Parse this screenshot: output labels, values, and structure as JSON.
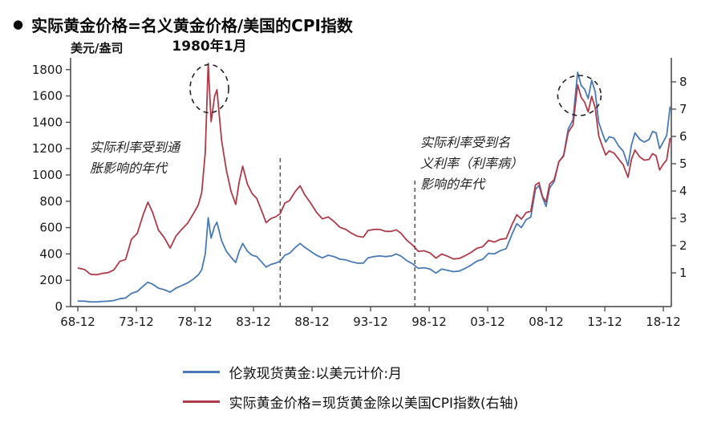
{
  "title": {
    "bullet": "●",
    "text": "实际黄金价格=名义黄金价格/美国的CPI指数"
  },
  "chart_data": {
    "type": "line",
    "unit_label": "美元/盎司",
    "x_range": [
      1968.3,
      2019.6
    ],
    "x_tick_labels": [
      "68-12",
      "73-12",
      "78-12",
      "83-12",
      "88-12",
      "93-12",
      "98-12",
      "03-12",
      "08-12",
      "13-12",
      "18-12"
    ],
    "x_tick_years": [
      1968.92,
      1973.92,
      1978.92,
      1983.92,
      1988.92,
      1993.92,
      1998.92,
      2003.92,
      2008.92,
      2013.92,
      2018.92
    ],
    "left_axis": {
      "ticks": [
        0,
        200,
        400,
        600,
        800,
        1000,
        1200,
        1400,
        1600,
        1800
      ],
      "range": [
        0,
        1890
      ]
    },
    "right_axis": {
      "ticks": [
        1,
        2,
        3,
        4,
        5,
        6,
        7,
        8
      ],
      "range": [
        -0.235,
        8.882
      ]
    },
    "x": [
      1968.9,
      1969.5,
      1970.0,
      1970.5,
      1971.0,
      1971.5,
      1972.0,
      1972.5,
      1973.0,
      1973.5,
      1974.0,
      1974.5,
      1974.9,
      1975.3,
      1975.8,
      1976.3,
      1976.8,
      1977.3,
      1977.8,
      1978.3,
      1978.8,
      1979.2,
      1979.5,
      1979.8,
      1980.05,
      1980.3,
      1980.6,
      1980.8,
      1981.2,
      1981.6,
      1982.0,
      1982.4,
      1982.7,
      1983.0,
      1983.4,
      1983.8,
      1984.2,
      1984.6,
      1985.0,
      1985.4,
      1985.8,
      1986.2,
      1986.6,
      1987.0,
      1987.5,
      1987.9,
      1988.3,
      1988.8,
      1989.3,
      1989.8,
      1990.3,
      1990.8,
      1991.3,
      1991.8,
      1992.3,
      1992.8,
      1993.3,
      1993.7,
      1994.2,
      1994.7,
      1995.2,
      1995.7,
      1996.1,
      1996.5,
      1997.0,
      1997.5,
      1998.0,
      1998.5,
      1999.0,
      1999.5,
      2000.0,
      2000.5,
      2001.0,
      2001.5,
      2002.0,
      2002.5,
      2003.0,
      2003.5,
      2004.0,
      2004.5,
      2005.0,
      2005.5,
      2006.0,
      2006.4,
      2006.8,
      2007.2,
      2007.6,
      2008.0,
      2008.3,
      2008.6,
      2008.9,
      2009.2,
      2009.6,
      2010.0,
      2010.4,
      2010.8,
      2011.2,
      2011.6,
      2011.9,
      2012.2,
      2012.5,
      2012.8,
      2013.1,
      2013.4,
      2013.7,
      2014.0,
      2014.3,
      2014.7,
      2015.1,
      2015.5,
      2015.9,
      2016.2,
      2016.5,
      2016.9,
      2017.3,
      2017.7,
      2018.0,
      2018.3,
      2018.6,
      2018.9,
      2019.2,
      2019.5
    ],
    "series": [
      {
        "name": "伦敦现货黄金:以美元计价:月",
        "axis": "left",
        "color": "#4a7ab5",
        "values": [
          42,
          41,
          36,
          36,
          39,
          41,
          46,
          60,
          65,
          100,
          115,
          155,
          185,
          170,
          140,
          128,
          110,
          140,
          160,
          180,
          210,
          240,
          280,
          400,
          675,
          520,
          610,
          640,
          500,
          420,
          375,
          335,
          420,
          480,
          420,
          390,
          380,
          340,
          300,
          320,
          330,
          345,
          390,
          405,
          450,
          480,
          450,
          420,
          390,
          370,
          390,
          380,
          360,
          355,
          340,
          330,
          330,
          370,
          380,
          385,
          380,
          385,
          400,
          385,
          350,
          325,
          290,
          295,
          285,
          255,
          285,
          275,
          265,
          270,
          290,
          315,
          345,
          360,
          405,
          400,
          425,
          440,
          550,
          630,
          600,
          660,
          680,
          890,
          920,
          830,
          760,
          900,
          950,
          1100,
          1150,
          1350,
          1420,
          1780,
          1680,
          1650,
          1580,
          1720,
          1630,
          1400,
          1320,
          1250,
          1290,
          1280,
          1220,
          1180,
          1070,
          1230,
          1320,
          1270,
          1250,
          1270,
          1330,
          1320,
          1200,
          1250,
          1300,
          1520
        ]
      },
      {
        "name": "实际黄金价格=现货黄金除以美国CPI指数(右轴)",
        "axis": "right",
        "color": "#ae3b49",
        "values": [
          1.18,
          1.12,
          0.95,
          0.93,
          0.98,
          1.01,
          1.11,
          1.42,
          1.49,
          2.23,
          2.45,
          3.13,
          3.59,
          3.22,
          2.57,
          2.29,
          1.91,
          2.35,
          2.6,
          2.82,
          3.18,
          3.48,
          3.94,
          5.41,
          8.68,
          6.54,
          7.48,
          7.71,
          5.85,
          4.77,
          3.99,
          3.51,
          4.33,
          4.91,
          4.25,
          3.91,
          3.73,
          3.29,
          2.84,
          2.99,
          3.05,
          3.17,
          3.56,
          3.65,
          3.99,
          4.19,
          3.86,
          3.56,
          3.22,
          2.98,
          3.05,
          2.88,
          2.67,
          2.59,
          2.45,
          2.34,
          2.31,
          2.55,
          2.59,
          2.59,
          2.52,
          2.52,
          2.58,
          2.46,
          2.2,
          2.02,
          1.79,
          1.81,
          1.73,
          1.54,
          1.69,
          1.61,
          1.51,
          1.53,
          1.63,
          1.75,
          1.9,
          1.96,
          2.19,
          2.13,
          2.23,
          2.26,
          2.77,
          3.13,
          2.97,
          3.21,
          3.26,
          4.22,
          4.31,
          3.79,
          3.6,
          4.25,
          4.42,
          5.08,
          5.28,
          6.16,
          6.42,
          7.89,
          7.43,
          7.25,
          6.9,
          7.47,
          7.05,
          6.02,
          5.65,
          5.32,
          5.47,
          5.39,
          5.17,
          4.96,
          4.5,
          5.17,
          5.5,
          5.25,
          5.13,
          5.16,
          5.37,
          5.29,
          4.77,
          4.98,
          5.14,
          5.94
        ]
      }
    ],
    "annotations": {
      "peak_label": "1980年1月",
      "peak_year": 1980.15,
      "left_note_lines": [
        "实际利率受到通",
        "胀影响的年代"
      ],
      "right_note_lines": [
        "实际利率受到名",
        "义利率（利率病）",
        "影响的年代"
      ],
      "vlines": [
        1986.2,
        1997.7
      ],
      "circles": [
        {
          "x": 1980.15,
          "y": 7.75,
          "rx": 24,
          "ry": 30
        },
        {
          "x": 2011.75,
          "y": 7.5,
          "rx": 27,
          "ry": 25
        }
      ]
    },
    "legend": [
      {
        "label": "伦敦现货黄金:以美元计价:月",
        "color": "#4a7ab5"
      },
      {
        "label": "实际黄金价格=现货黄金除以美国CPI指数(右轴)",
        "color": "#ae3b49"
      }
    ]
  }
}
